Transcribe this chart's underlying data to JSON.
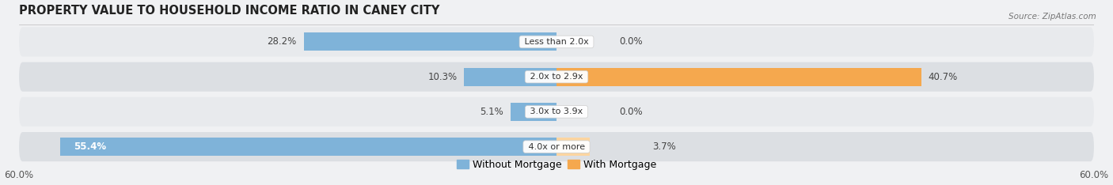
{
  "title": "PROPERTY VALUE TO HOUSEHOLD INCOME RATIO IN CANEY CITY",
  "source": "Source: ZipAtlas.com",
  "categories": [
    "Less than 2.0x",
    "2.0x to 2.9x",
    "3.0x to 3.9x",
    "4.0x or more"
  ],
  "without_mortgage": [
    28.2,
    10.3,
    5.1,
    55.4
  ],
  "with_mortgage": [
    0.0,
    40.7,
    0.0,
    3.7
  ],
  "color_without": "#7fb3d9",
  "color_with": "#f5a84e",
  "color_with_light": "#fcd5a0",
  "axis_label_left": "60.0%",
  "axis_label_right": "60.0%",
  "max_val": 60.0,
  "bar_height": 0.52,
  "title_fontsize": 10.5,
  "label_fontsize": 8.5,
  "legend_fontsize": 9,
  "cat_fontsize": 8.0,
  "row_bg_light": "#e8eaed",
  "row_bg_dark": "#dcdfe3",
  "fig_bg": "#f0f1f3"
}
